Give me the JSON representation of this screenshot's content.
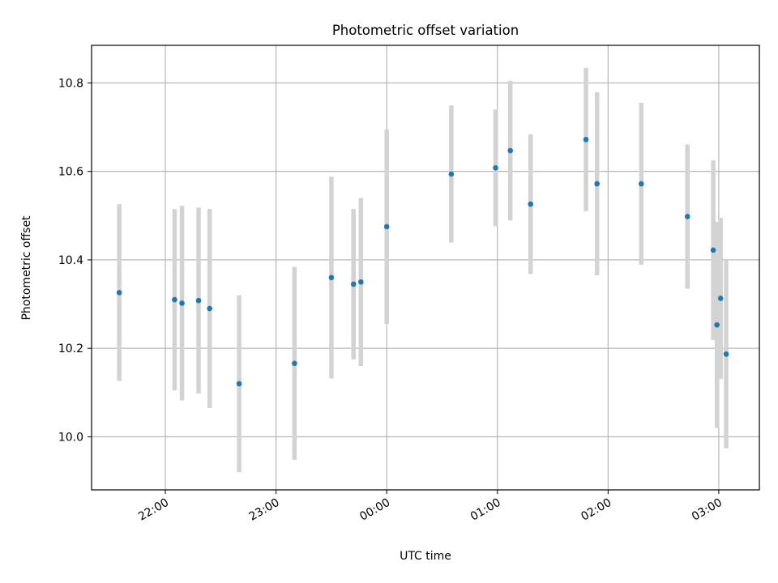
{
  "chart_data": {
    "type": "scatter",
    "title": "Photometric offset variation",
    "xlabel": "UTC time",
    "ylabel": "Photometric offset",
    "x_reference_day": "2000-01-01",
    "xlim": [
      "2000-01-01T21:20",
      "2000-01-02T03:22"
    ],
    "ylim": [
      9.88,
      10.885
    ],
    "x_ticks": [
      {
        "time": "2000-01-01T22:00",
        "label": "22:00"
      },
      {
        "time": "2000-01-01T23:00",
        "label": "23:00"
      },
      {
        "time": "2000-01-02T00:00",
        "label": "00:00"
      },
      {
        "time": "2000-01-02T01:00",
        "label": "01:00"
      },
      {
        "time": "2000-01-02T02:00",
        "label": "02:00"
      },
      {
        "time": "2000-01-02T03:00",
        "label": "03:00"
      }
    ],
    "y_ticks": [
      {
        "value": 10.0,
        "label": "10.0"
      },
      {
        "value": 10.2,
        "label": "10.2"
      },
      {
        "value": 10.4,
        "label": "10.4"
      },
      {
        "value": 10.6,
        "label": "10.6"
      },
      {
        "value": 10.8,
        "label": "10.8"
      }
    ],
    "grid": true,
    "point_color": "#1f77b4",
    "errorbar_color": "#d3d3d3",
    "points": [
      {
        "x": "2000-01-01T21:35",
        "y": 10.326,
        "err": 0.2
      },
      {
        "x": "2000-01-01T22:05",
        "y": 10.31,
        "err": 0.205
      },
      {
        "x": "2000-01-01T22:09",
        "y": 10.302,
        "err": 0.22
      },
      {
        "x": "2000-01-01T22:18",
        "y": 10.308,
        "err": 0.21
      },
      {
        "x": "2000-01-01T22:24",
        "y": 10.29,
        "err": 0.225
      },
      {
        "x": "2000-01-01T22:40",
        "y": 10.12,
        "err": 0.2
      },
      {
        "x": "2000-01-01T23:10",
        "y": 10.166,
        "err": 0.218
      },
      {
        "x": "2000-01-01T23:30",
        "y": 10.36,
        "err": 0.228
      },
      {
        "x": "2000-01-01T23:42",
        "y": 10.345,
        "err": 0.17
      },
      {
        "x": "2000-01-01T23:46",
        "y": 10.35,
        "err": 0.19
      },
      {
        "x": "2000-01-02T00:00",
        "y": 10.475,
        "err": 0.22
      },
      {
        "x": "2000-01-02T00:35",
        "y": 10.594,
        "err": 0.155
      },
      {
        "x": "2000-01-02T00:59",
        "y": 10.608,
        "err": 0.132
      },
      {
        "x": "2000-01-02T01:07",
        "y": 10.647,
        "err": 0.158
      },
      {
        "x": "2000-01-02T01:18",
        "y": 10.526,
        "err": 0.158
      },
      {
        "x": "2000-01-02T01:48",
        "y": 10.672,
        "err": 0.162
      },
      {
        "x": "2000-01-02T01:54",
        "y": 10.572,
        "err": 0.207
      },
      {
        "x": "2000-01-02T02:18",
        "y": 10.572,
        "err": 0.183
      },
      {
        "x": "2000-01-02T02:43",
        "y": 10.498,
        "err": 0.163
      },
      {
        "x": "2000-01-02T02:57",
        "y": 10.422,
        "err": 0.203
      },
      {
        "x": "2000-01-02T02:59",
        "y": 10.253,
        "err": 0.233
      },
      {
        "x": "2000-01-02T03:01",
        "y": 10.313,
        "err": 0.182
      },
      {
        "x": "2000-01-02T03:04",
        "y": 10.187,
        "err": 0.213
      }
    ]
  }
}
